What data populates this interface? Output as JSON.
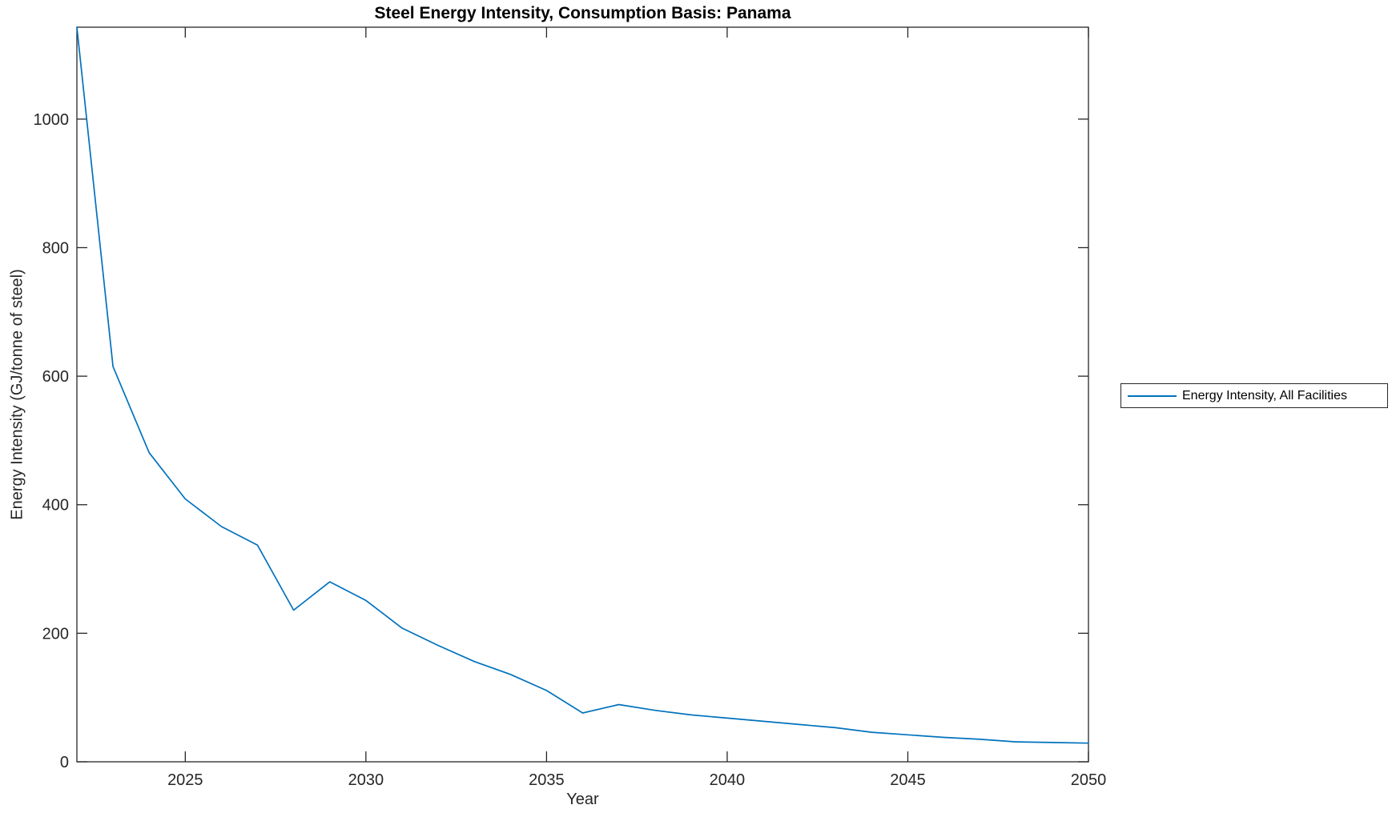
{
  "figure": {
    "background": "#ffffff"
  },
  "chart_data": {
    "type": "line",
    "title": "Steel Energy Intensity, Consumption Basis: Panama",
    "xlabel": "Year",
    "ylabel": "Energy Intensity (GJ/tonne of steel)",
    "x": [
      2022,
      2023,
      2024,
      2025,
      2026,
      2027,
      2028,
      2029,
      2030,
      2031,
      2032,
      2033,
      2034,
      2035,
      2036,
      2037,
      2038,
      2039,
      2040,
      2041,
      2042,
      2043,
      2044,
      2045,
      2046,
      2047,
      2048,
      2049,
      2050
    ],
    "series": [
      {
        "name": "Energy Intensity, All Facilities",
        "color": "#0072BD",
        "values": [
          1143,
          615,
          481,
          409,
          366,
          337,
          236,
          280,
          251,
          208,
          181,
          156,
          136,
          111,
          76,
          89,
          80,
          73,
          68,
          63,
          58,
          53,
          46,
          42,
          38,
          35,
          31,
          30,
          29
        ]
      }
    ],
    "xlim": [
      2022,
      2050
    ],
    "ylim": [
      0,
      1143
    ],
    "xticks": [
      2025,
      2030,
      2035,
      2040,
      2045,
      2050
    ],
    "yticks": [
      0,
      200,
      400,
      600,
      800,
      1000
    ],
    "grid": false,
    "box": true,
    "tick_direction": "in",
    "legend_position": "right-outside"
  },
  "colors": {
    "line": "#0072BD",
    "axis": "#262626",
    "title": "#000000",
    "background": "#ffffff"
  }
}
